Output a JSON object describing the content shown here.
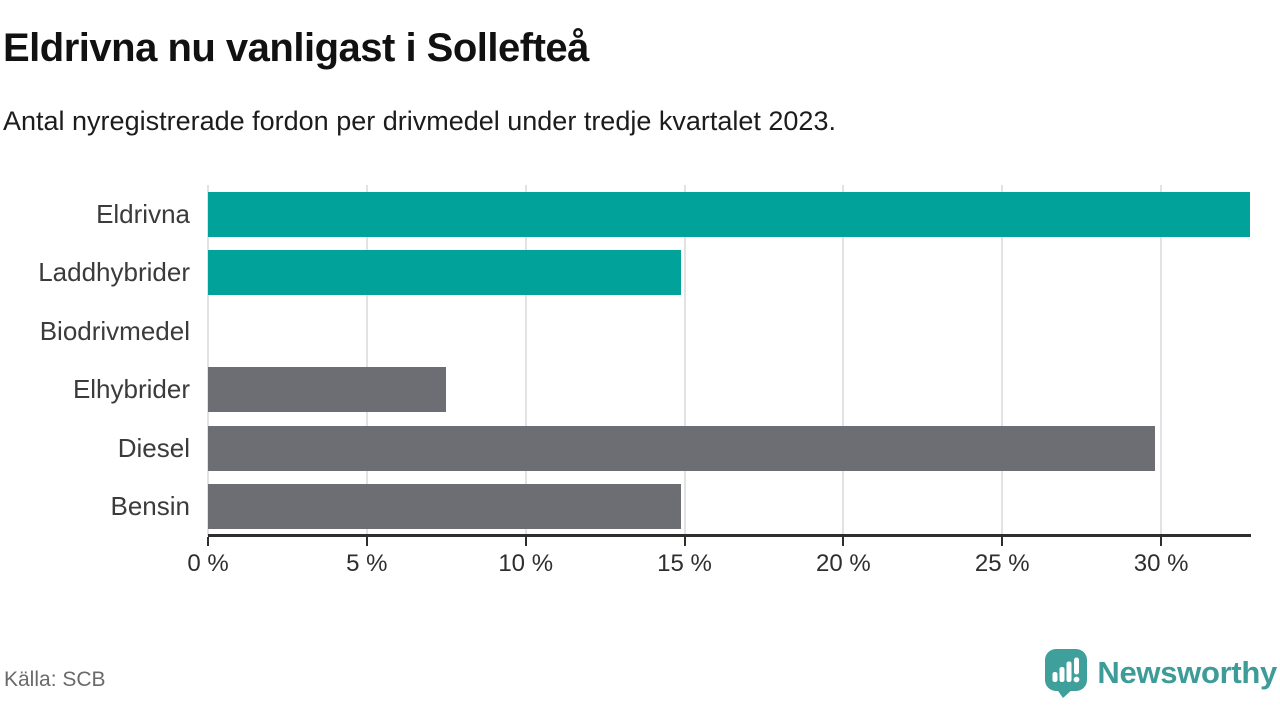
{
  "header": {
    "title": "Eldrivna nu vanligast i Sollefteå",
    "subtitle": "Antal nyregistrerade fordon per drivmedel under tredje kvartalet 2023."
  },
  "chart_data": {
    "type": "bar",
    "orientation": "horizontal",
    "title": "Eldrivna nu vanligast i Sollefteå",
    "subtitle": "Antal nyregistrerade fordon per drivmedel under tredje kvartalet 2023.",
    "categories": [
      "Eldrivna",
      "Laddhybrider",
      "Biodrivmedel",
      "Elhybrider",
      "Diesel",
      "Bensin"
    ],
    "values": [
      32.8,
      14.9,
      0,
      7.5,
      29.8,
      14.9
    ],
    "unit": "%",
    "xlim": [
      0,
      32.83
    ],
    "xticks": [
      {
        "v": 0,
        "label": "0 %"
      },
      {
        "v": 5,
        "label": "5 %"
      },
      {
        "v": 10,
        "label": "10 %"
      },
      {
        "v": 15,
        "label": "15 %"
      },
      {
        "v": 20,
        "label": "20 %"
      },
      {
        "v": 25,
        "label": "25 %"
      },
      {
        "v": 30,
        "label": "30 %"
      }
    ],
    "grid": true,
    "legend": false,
    "bar_colors": [
      "#00a29a",
      "#00a29a",
      "#6d6d74",
      "#6d6d74",
      "#6d6d74",
      "#6d6d74"
    ],
    "colors": {
      "teal": "#00a29a",
      "gray": "#6d6d74",
      "gridline": "#e2e2e5",
      "axis": "#2e2e2e",
      "brand_teal": "#3d9c98"
    }
  },
  "footer": {
    "source": "Källa: SCB",
    "brand": "Newsworthy"
  }
}
